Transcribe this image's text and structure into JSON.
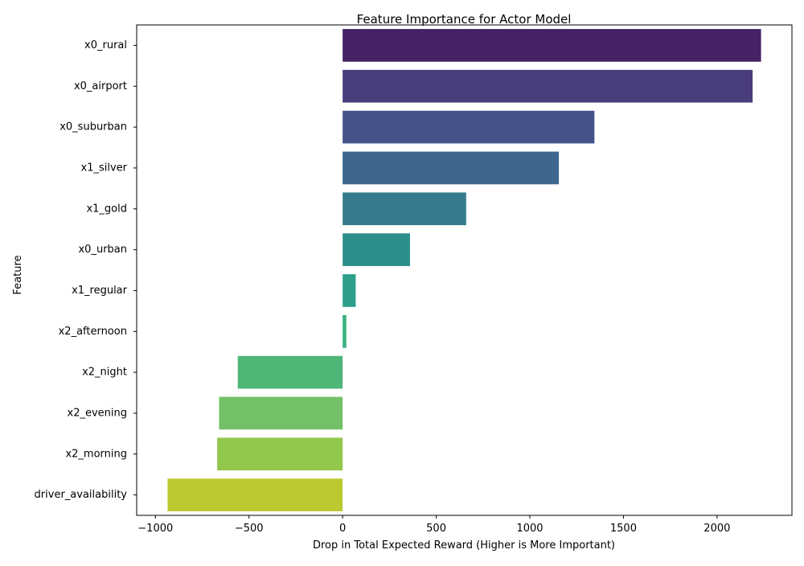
{
  "chart_data": {
    "type": "bar",
    "orientation": "horizontal",
    "title": "Feature Importance for Actor Model",
    "xlabel": "Drop in Total Expected Reward (Higher is More Important)",
    "ylabel": "Feature",
    "categories": [
      "x0_rural",
      "x0_airport",
      "x0_suburban",
      "x1_silver",
      "x1_gold",
      "x0_urban",
      "x1_regular",
      "x2_afternoon",
      "x2_night",
      "x2_evening",
      "x2_morning",
      "driver_availability"
    ],
    "values": [
      2235,
      2190,
      1345,
      1155,
      660,
      360,
      70,
      20,
      -560,
      -660,
      -670,
      -935
    ],
    "colors": [
      "#472166",
      "#4a3d7c",
      "#45538a",
      "#3d678d",
      "#357b8e",
      "#2e8e8c",
      "#2ca08a",
      "#3bb27e",
      "#4eb676",
      "#73c167",
      "#92c84c",
      "#bdc930"
    ],
    "xlim": [
      -1100,
      2400
    ],
    "xticks": [
      -1000,
      -500,
      0,
      500,
      1000,
      1500,
      2000
    ],
    "grid": false,
    "legend": "none"
  }
}
